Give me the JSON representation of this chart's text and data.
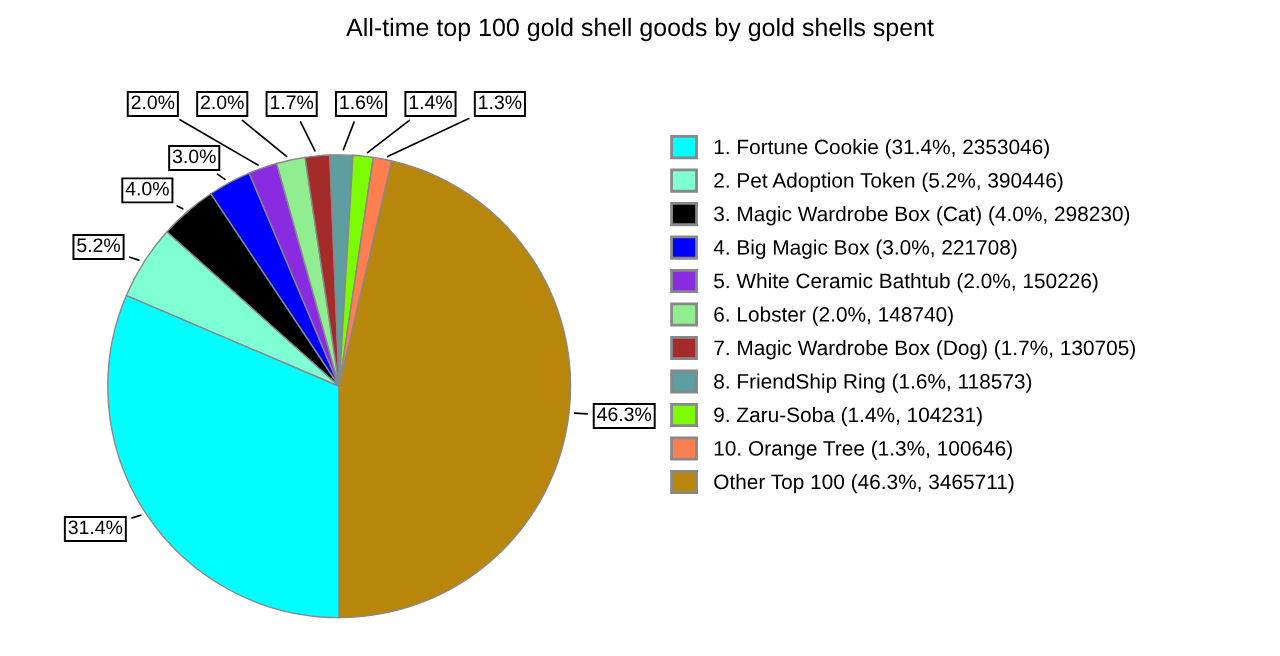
{
  "chart_data": {
    "type": "pie",
    "title": "All-time top 100 gold shell goods by gold shells spent",
    "categories": [
      "1. Fortune Cookie (31.4%, 2353046)",
      "2. Pet Adoption Token (5.2%, 390446)",
      "3. Magic Wardrobe Box (Cat) (4.0%, 298230)",
      "4. Big Magic Box (3.0%, 221708)",
      "5. White Ceramic Bathtub (2.0%, 150226)",
      "6. Lobster (2.0%, 148740)",
      "7. Magic Wardrobe Box (Dog) (1.7%, 130705)",
      "8. FriendShip Ring (1.6%, 118573)",
      "9. Zaru-Soba (1.4%, 104231)",
      "10. Orange Tree (1.3%, 100646)",
      "Other Top 100 (46.3%, 3465711)"
    ],
    "values": [
      31.4,
      5.2,
      4.0,
      3.0,
      2.0,
      2.0,
      1.7,
      1.6,
      1.4,
      1.3,
      46.3
    ],
    "value_labels": [
      "31.4%",
      "5.2%",
      "4.0%",
      "3.0%",
      "2.0%",
      "2.0%",
      "1.7%",
      "1.6%",
      "1.4%",
      "1.3%",
      "46.3%"
    ],
    "colors": [
      "#00ffff",
      "#7fffd4",
      "#000000",
      "#0000ff",
      "#8a2be2",
      "#90ee90",
      "#a52a2a",
      "#5f9ea0",
      "#7cfc00",
      "#ff7f50",
      "#b8860b"
    ],
    "legend": "right"
  }
}
